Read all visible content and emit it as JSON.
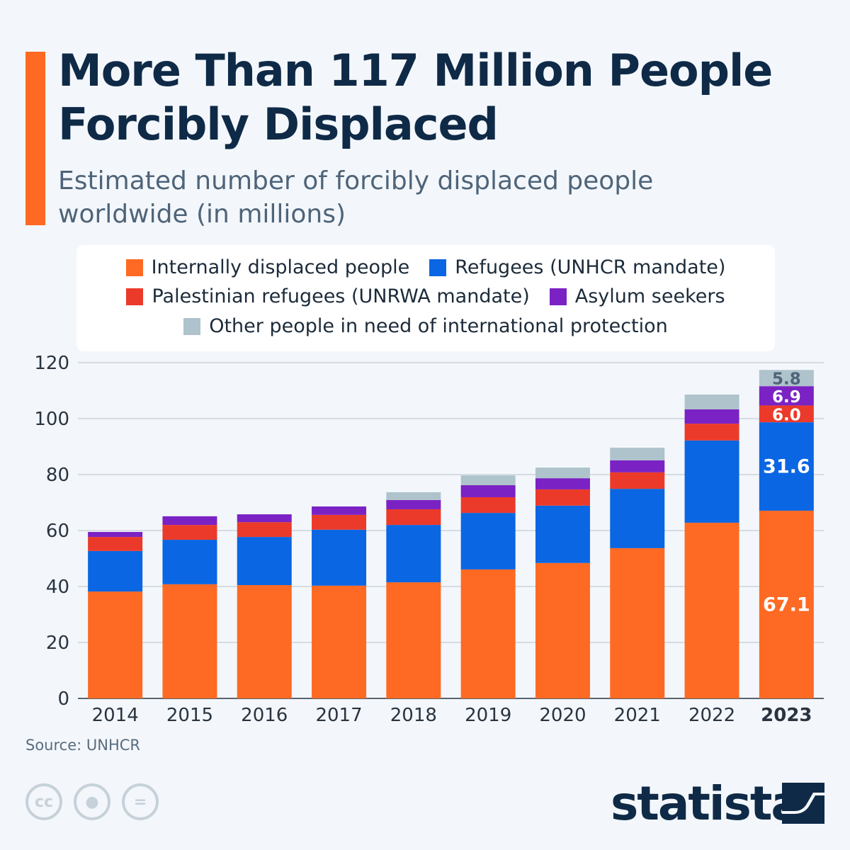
{
  "header": {
    "title": "More Than 117 Million People Forcibly Displaced",
    "subtitle": "Estimated number of forcibly displaced people worldwide (in millions)"
  },
  "footer": {
    "source": "Source: UNHCR",
    "brand": "statista",
    "license_icons": [
      "cc-icon",
      "attribution-icon",
      "no-derivatives-icon"
    ]
  },
  "chart_data": {
    "type": "bar",
    "stacked": true,
    "title": "More Than 117 Million People Forcibly Displaced",
    "subtitle": "Estimated number of forcibly displaced people worldwide (in millions)",
    "categories": [
      "2014",
      "2015",
      "2016",
      "2017",
      "2018",
      "2019",
      "2020",
      "2021",
      "2022",
      "2023"
    ],
    "highlight_category": "2023",
    "ylim": [
      0,
      120
    ],
    "yticks": [
      0,
      20,
      40,
      60,
      80,
      100,
      120
    ],
    "grid": true,
    "legend_position": "top",
    "series": [
      {
        "name": "Internally displaced people",
        "color": "#fe6a23",
        "values": [
          38.2,
          40.8,
          40.5,
          40.3,
          41.5,
          46.1,
          48.4,
          53.7,
          62.8,
          67.1
        ]
      },
      {
        "name": "Refugees (UNHCR mandate)",
        "color": "#0a66e3",
        "values": [
          14.5,
          15.9,
          17.2,
          20.0,
          20.5,
          20.2,
          20.5,
          21.2,
          29.4,
          31.6
        ]
      },
      {
        "name": "Palestinian refugees (UNRWA mandate)",
        "color": "#eb3a2a",
        "values": [
          5.0,
          5.3,
          5.3,
          5.3,
          5.6,
          5.6,
          5.8,
          5.9,
          6.0,
          6.0
        ]
      },
      {
        "name": "Asylum seekers",
        "color": "#7b22c4",
        "values": [
          1.8,
          3.1,
          2.8,
          3.0,
          3.3,
          4.3,
          4.0,
          4.3,
          5.1,
          6.9
        ]
      },
      {
        "name": "Other people in need of international protection",
        "color": "#aec3cc",
        "values": [
          0,
          0,
          0,
          0,
          2.8,
          3.5,
          3.8,
          4.5,
          5.3,
          5.8
        ]
      }
    ],
    "data_labels": {
      "2023": [
        "67.1",
        "31.6",
        "6.0",
        "6.9",
        "5.8"
      ]
    }
  }
}
